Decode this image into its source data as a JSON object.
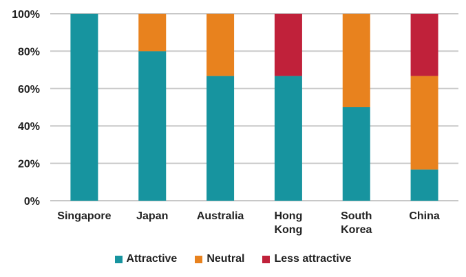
{
  "chart_data": {
    "type": "bar",
    "stacked": true,
    "categories": [
      [
        "Singapore"
      ],
      [
        "Japan"
      ],
      [
        "Australia"
      ],
      [
        "Hong",
        "Kong"
      ],
      [
        "South",
        "Korea"
      ],
      [
        "China"
      ]
    ],
    "series": [
      {
        "name": "Attractive",
        "color": "#17949f",
        "values": [
          100,
          80,
          66.7,
          66.7,
          50,
          16.7
        ]
      },
      {
        "name": "Neutral",
        "color": "#e8821e",
        "values": [
          0,
          20,
          33.3,
          0,
          50,
          50
        ]
      },
      {
        "name": "Less attractive",
        "color": "#c0213a",
        "values": [
          0,
          0,
          0,
          33.3,
          0,
          33.3
        ]
      }
    ],
    "yticks": [
      "0%",
      "20%",
      "40%",
      "60%",
      "80%",
      "100%"
    ],
    "ylim": [
      0,
      100
    ],
    "grid": true,
    "legend_position": "bottom"
  }
}
